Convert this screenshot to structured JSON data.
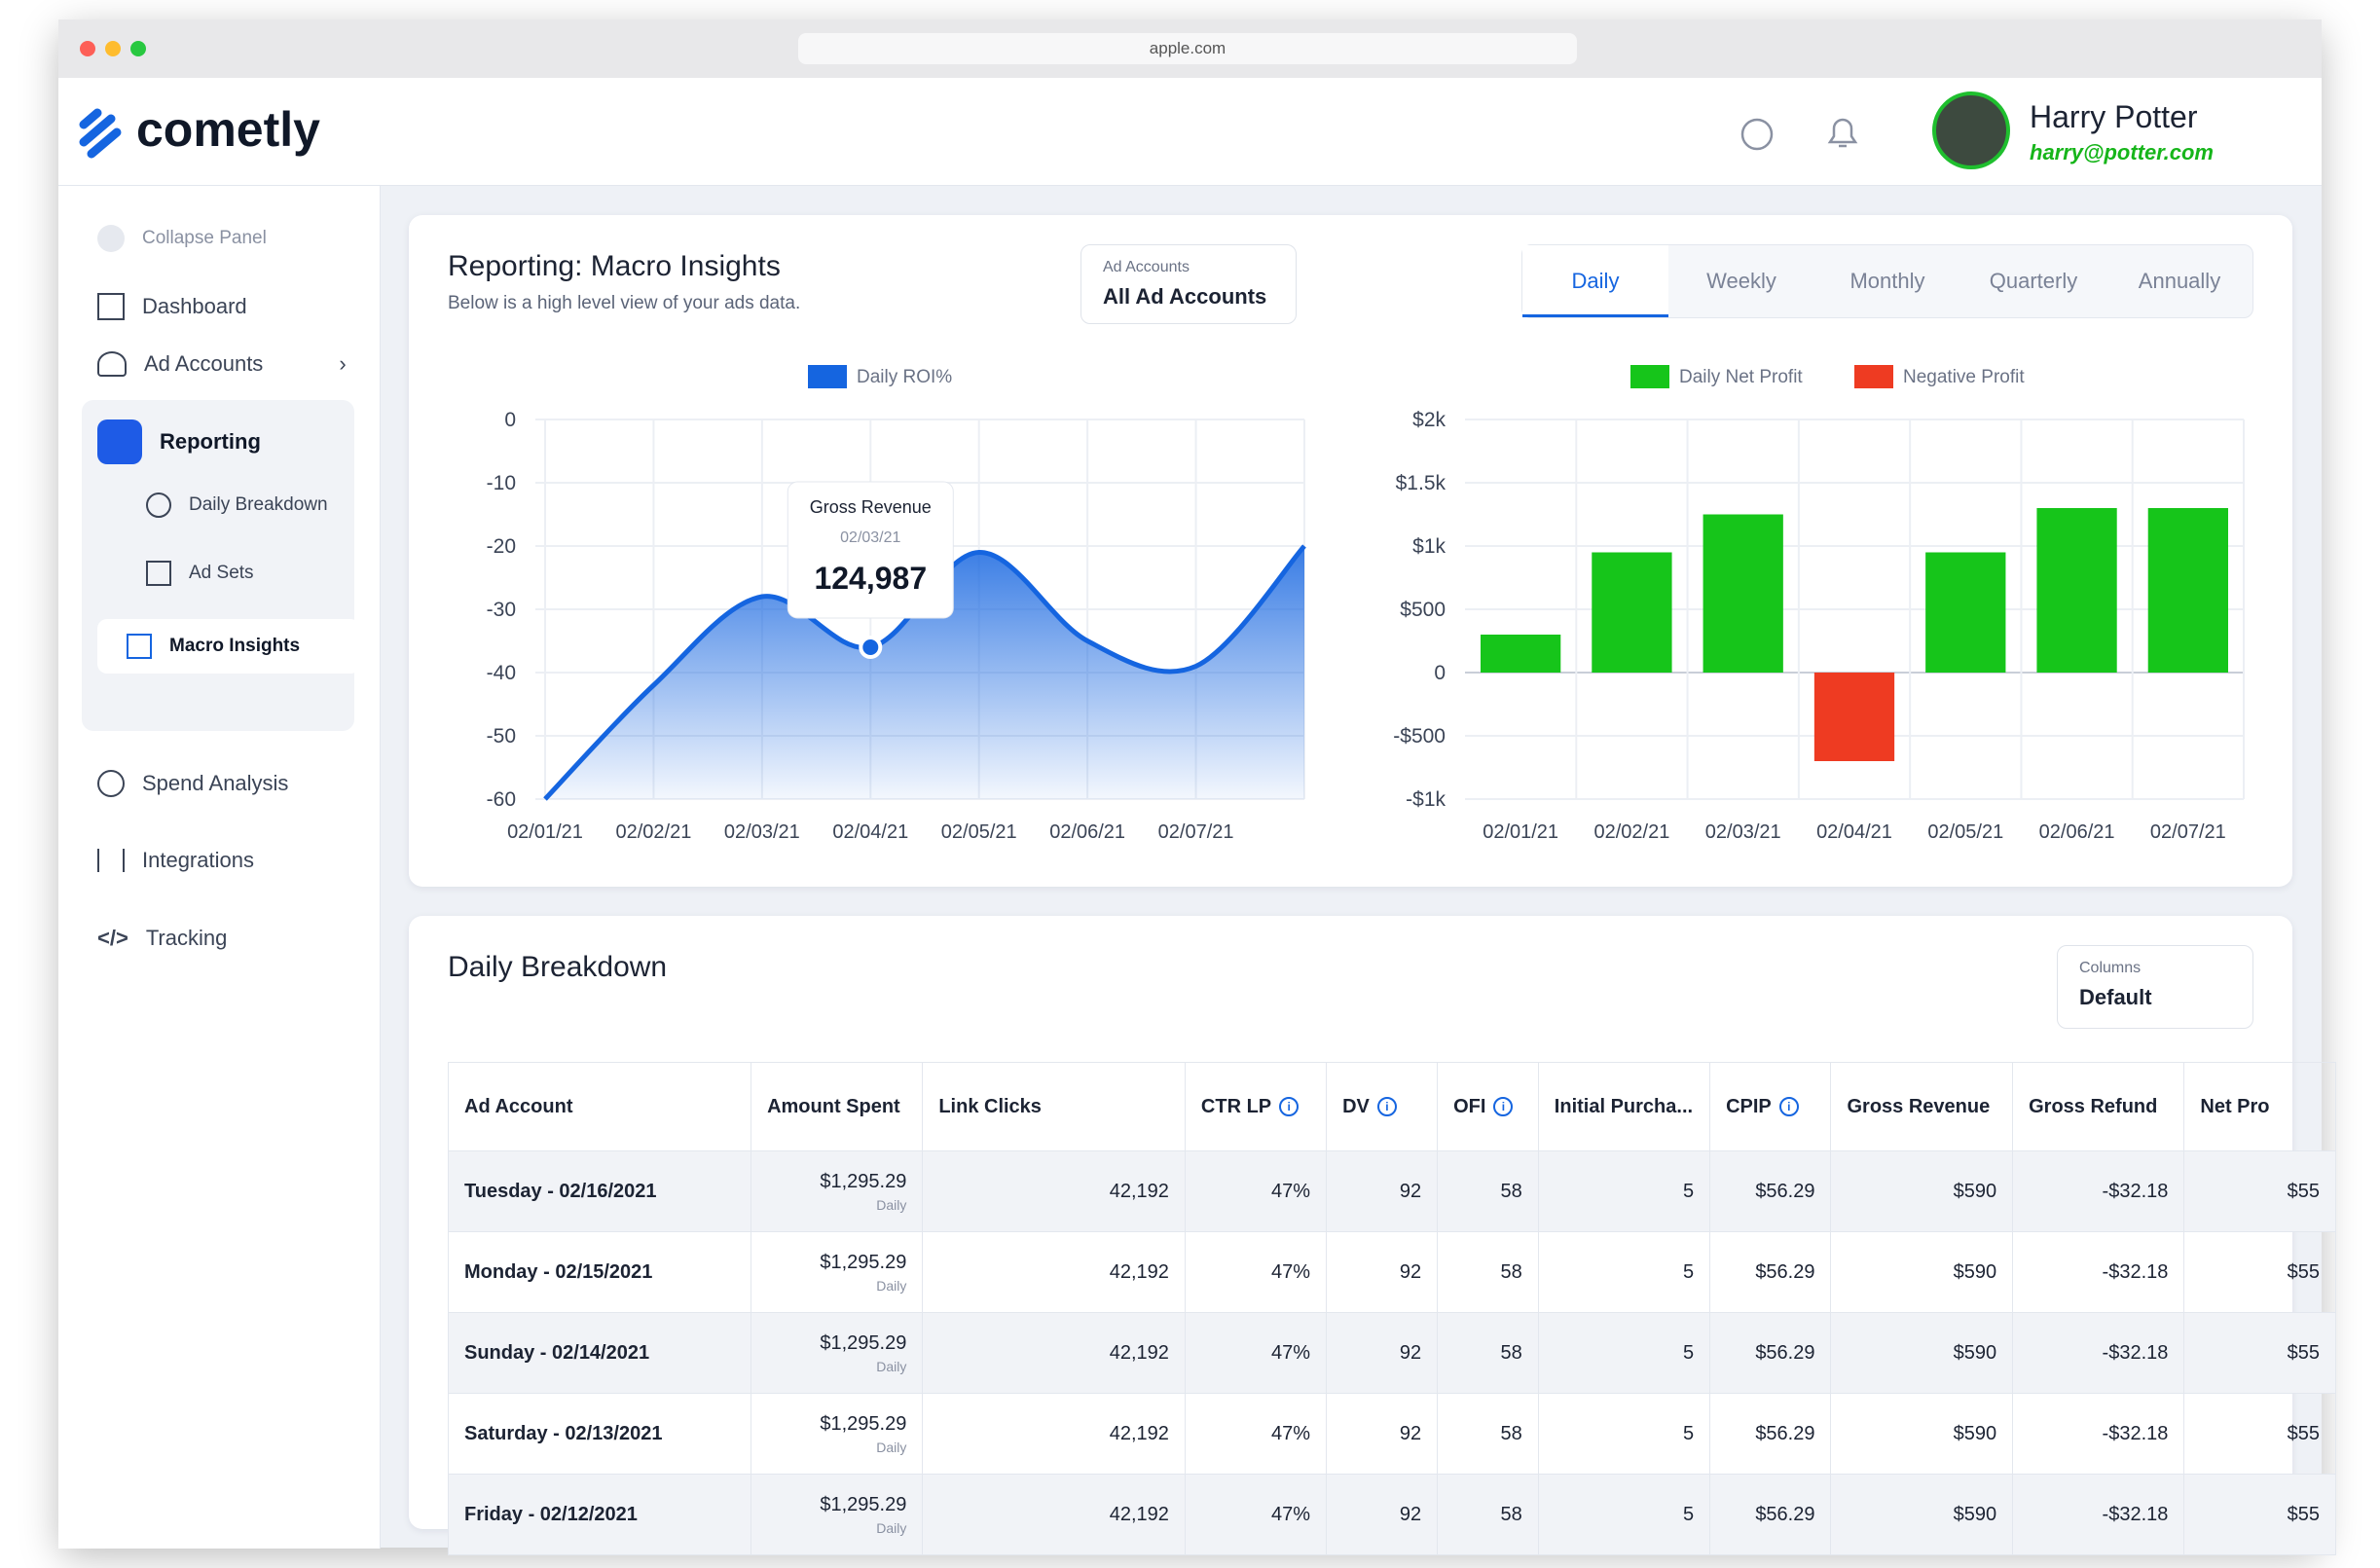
{
  "browser": {
    "url": "apple.com"
  },
  "header": {
    "logo": "cometly",
    "user_name": "Harry Potter",
    "user_email": "harry@potter.com"
  },
  "sidebar": {
    "collapse": "Collapse Panel",
    "dashboard": "Dashboard",
    "ad_accounts": "Ad Accounts",
    "reporting": "Reporting",
    "reporting_items": [
      "Daily Breakdown",
      "Ad Sets",
      "Macro Insights"
    ],
    "spend_analysis": "Spend Analysis",
    "integrations": "Integrations",
    "tracking": "Tracking"
  },
  "panel": {
    "title": "Reporting: Macro Insights",
    "subtitle": "Below is a high level view of your ads data.",
    "account_label": "Ad Accounts",
    "account_value": "All Ad Accounts",
    "tabs": [
      "Daily",
      "Weekly",
      "Monthly",
      "Quarterly",
      "Annually"
    ],
    "active_tab": 0
  },
  "chart_data": [
    {
      "type": "area",
      "categories": [
        "02/01/21",
        "02/02/21",
        "02/03/21",
        "02/04/21",
        "02/05/21",
        "02/06/21",
        "02/07/21",
        null
      ],
      "series": [
        {
          "name": "Daily ROI%",
          "color": "#1565e0",
          "values": [
            -60,
            -42,
            -28,
            -36,
            -21,
            -35,
            -39,
            -20
          ]
        }
      ],
      "ylim": [
        -60,
        0
      ],
      "yticks": [
        0,
        -10,
        -20,
        -30,
        -40,
        -50,
        -60
      ],
      "grid": true,
      "tooltip": {
        "label": "Gross Revenue",
        "date": "02/03/21",
        "value": "124,987"
      }
    },
    {
      "type": "bar",
      "categories": [
        "02/01/21",
        "02/02/21",
        "02/03/21",
        "02/04/21",
        "02/05/21",
        "02/06/21",
        "02/07/21"
      ],
      "series": [
        {
          "name": "Daily Net Profit",
          "color": "#16c51a",
          "values": [
            300,
            950,
            1250,
            null,
            950,
            1300,
            1300
          ]
        },
        {
          "name": "Negative Profit",
          "color": "#ee3b22",
          "values": [
            null,
            null,
            null,
            -700,
            null,
            null,
            null
          ]
        }
      ],
      "ylim": [
        -1000,
        2000
      ],
      "yticks": [
        {
          "value": 2000,
          "label": "$2k"
        },
        {
          "value": 1500,
          "label": "$1.5k"
        },
        {
          "value": 1000,
          "label": "$1k"
        },
        {
          "value": 500,
          "label": "$500"
        },
        0,
        {
          "value": -500,
          "label": "-$500"
        },
        {
          "value": -1000,
          "label": "-$1k"
        }
      ],
      "grid": true
    }
  ],
  "table": {
    "title": "Daily Breakdown",
    "columns_label": "Columns",
    "columns_value": "Default",
    "headers": [
      "Ad Account",
      "Amount Spent",
      "Link Clicks",
      "CTR LP",
      "DV",
      "OFI",
      "Initial Purcha...",
      "CPIP",
      "Gross Revenue",
      "Gross Refund",
      "Net Pro"
    ],
    "rows": [
      [
        "Tuesday - 02/16/2021",
        "$1,295.29",
        "Daily",
        "42,192",
        "47%",
        "92",
        "58",
        "5",
        "$56.29",
        "$590",
        "-$32.18",
        "$55"
      ],
      [
        "Monday - 02/15/2021",
        "$1,295.29",
        "Daily",
        "42,192",
        "47%",
        "92",
        "58",
        "5",
        "$56.29",
        "$590",
        "-$32.18",
        "$55"
      ],
      [
        "Sunday - 02/14/2021",
        "$1,295.29",
        "Daily",
        "42,192",
        "47%",
        "92",
        "58",
        "5",
        "$56.29",
        "$590",
        "-$32.18",
        "$55"
      ],
      [
        "Saturday - 02/13/2021",
        "$1,295.29",
        "Daily",
        "42,192",
        "47%",
        "92",
        "58",
        "5",
        "$56.29",
        "$590",
        "-$32.18",
        "$55"
      ],
      [
        "Friday - 02/12/2021",
        "$1,295.29",
        "Daily",
        "42,192",
        "47%",
        "92",
        "58",
        "5",
        "$56.29",
        "$590",
        "-$32.18",
        "$55"
      ]
    ]
  }
}
